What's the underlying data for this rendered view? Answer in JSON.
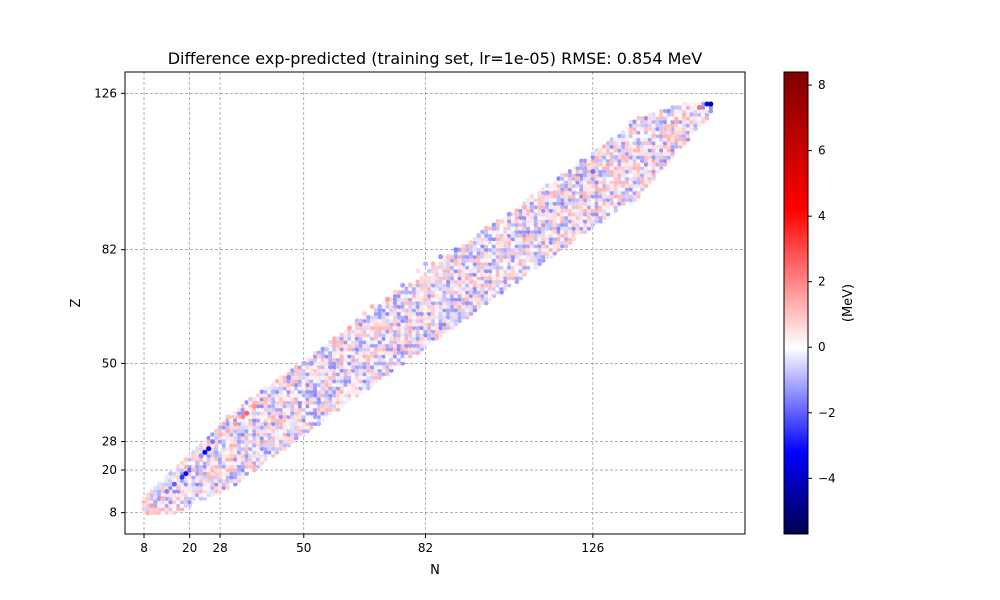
{
  "chart_data": {
    "type": "scatter",
    "title": "Difference exp-predicted (training set, lr=1e-05)  RMSE: 0.854 MeV",
    "xlabel": "N",
    "ylabel": "Z",
    "xlim": [
      3,
      166
    ],
    "ylim": [
      2,
      132
    ],
    "xticks": [
      8,
      20,
      28,
      50,
      82,
      126
    ],
    "yticks": [
      8,
      20,
      28,
      50,
      82,
      126
    ],
    "grid": true,
    "grid_style": "dashed",
    "colormap": "seismic",
    "colorbar": {
      "label": "(MeV)",
      "vmin": -5.7,
      "vmax": 8.4,
      "ticks": [
        8,
        6,
        4,
        2,
        0,
        -2,
        -4
      ],
      "tick_labels": [
        "8",
        "6",
        "4",
        "2",
        "0",
        "−2",
        "−4"
      ]
    },
    "colors": {
      "neg_extreme": "#00004c",
      "negative": "#0000ff",
      "zero": "#ffffff",
      "positive": "#ff0000",
      "pos_extreme": "#800000",
      "grid": "#808080"
    },
    "points": [
      [
        8,
        10,
        0.6
      ],
      [
        9,
        8,
        1.4
      ],
      [
        9,
        9,
        -0.5
      ],
      [
        10,
        8,
        0.8
      ],
      [
        10,
        10,
        1.6
      ],
      [
        11,
        11,
        -0.9
      ],
      [
        12,
        12,
        -1.1
      ],
      [
        13,
        12,
        1.2
      ],
      [
        14,
        14,
        -1.4
      ],
      [
        15,
        13,
        0.5
      ],
      [
        16,
        16,
        -1.8
      ],
      [
        17,
        15,
        1.0
      ],
      [
        18,
        18,
        -2.3
      ],
      [
        19,
        19,
        -2.8
      ],
      [
        20,
        20,
        -1.6
      ],
      [
        21,
        20,
        1.1
      ],
      [
        22,
        22,
        -0.7
      ],
      [
        23,
        24,
        -1.2
      ],
      [
        24,
        25,
        -2.9
      ],
      [
        25,
        26,
        -3.1
      ],
      [
        26,
        28,
        -1.5
      ],
      [
        27,
        27,
        0.9
      ],
      [
        28,
        30,
        1.2
      ],
      [
        29,
        28,
        -0.6
      ],
      [
        30,
        31,
        1.4
      ],
      [
        32,
        33,
        1.6
      ],
      [
        34,
        35,
        2.1
      ],
      [
        35,
        36,
        2.6
      ],
      [
        37,
        38,
        1.8
      ],
      [
        40,
        40,
        1.1
      ],
      [
        42,
        42,
        -0.8
      ],
      [
        44,
        44,
        0.7
      ],
      [
        46,
        46,
        -1.3
      ],
      [
        48,
        48,
        1.0
      ],
      [
        50,
        50,
        -0.9
      ],
      [
        52,
        50,
        -1.1
      ],
      [
        54,
        52,
        0.8
      ],
      [
        56,
        54,
        -0.6
      ],
      [
        58,
        56,
        1.3
      ],
      [
        60,
        58,
        0.9
      ],
      [
        62,
        60,
        1.5
      ],
      [
        64,
        62,
        -0.7
      ],
      [
        66,
        64,
        0.8
      ],
      [
        68,
        66,
        1.2
      ],
      [
        70,
        66,
        -0.9
      ],
      [
        72,
        68,
        1.6
      ],
      [
        74,
        70,
        0.7
      ],
      [
        76,
        72,
        -1.0
      ],
      [
        78,
        72,
        1.1
      ],
      [
        80,
        76,
        0.6
      ],
      [
        82,
        78,
        -0.8
      ],
      [
        84,
        78,
        1.1
      ],
      [
        86,
        80,
        -1.2
      ],
      [
        88,
        80,
        0.9
      ],
      [
        90,
        82,
        -1.4
      ],
      [
        92,
        82,
        1.0
      ],
      [
        94,
        84,
        0.8
      ],
      [
        96,
        86,
        -0.7
      ],
      [
        98,
        88,
        1.1
      ],
      [
        100,
        88,
        -0.9
      ],
      [
        102,
        90,
        0.7
      ],
      [
        104,
        92,
        -1.1
      ],
      [
        106,
        92,
        0.9
      ],
      [
        108,
        94,
        1.3
      ],
      [
        110,
        94,
        -0.8
      ],
      [
        112,
        96,
        0.9
      ],
      [
        114,
        98,
        -1.0
      ],
      [
        116,
        98,
        1.2
      ],
      [
        118,
        100,
        -0.7
      ],
      [
        120,
        100,
        0.8
      ],
      [
        122,
        102,
        1.1
      ],
      [
        124,
        104,
        -0.9
      ],
      [
        126,
        104,
        -1.6
      ],
      [
        128,
        106,
        0.9
      ],
      [
        130,
        106,
        1.4
      ],
      [
        132,
        108,
        -0.8
      ],
      [
        134,
        108,
        1.2
      ],
      [
        136,
        110,
        0.7
      ],
      [
        138,
        112,
        -1.0
      ],
      [
        140,
        112,
        0.9
      ],
      [
        142,
        114,
        1.1
      ],
      [
        144,
        116,
        -0.6
      ],
      [
        146,
        116,
        0.8
      ],
      [
        148,
        118,
        1.4
      ],
      [
        150,
        120,
        1.2
      ],
      [
        152,
        120,
        -0.8
      ],
      [
        154,
        122,
        2.4
      ],
      [
        156,
        123,
        -3.2
      ],
      [
        157,
        123,
        -5.2
      ]
    ]
  }
}
